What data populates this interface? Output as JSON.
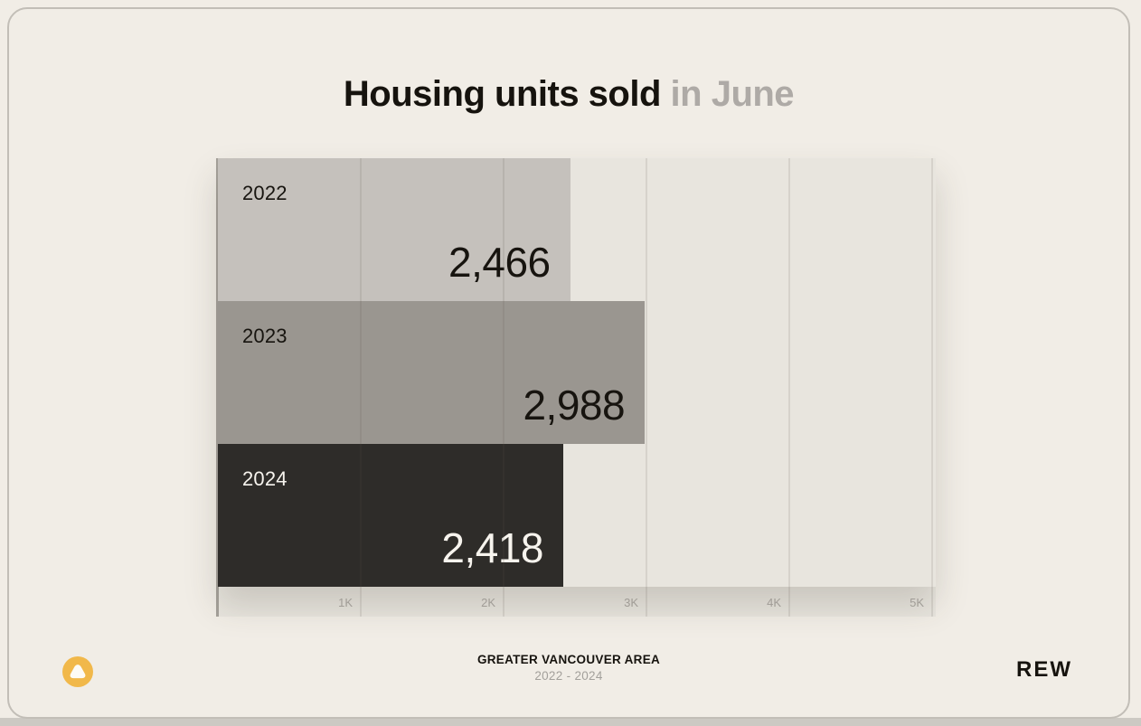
{
  "title": {
    "main": "Housing units sold",
    "accent": "in June"
  },
  "chart_data": {
    "type": "bar",
    "orientation": "horizontal",
    "title": "Housing units sold in June",
    "categories": [
      "2022",
      "2023",
      "2024"
    ],
    "values": [
      2466,
      2988,
      2418
    ],
    "value_labels": [
      "2,466",
      "2,988",
      "2,418"
    ],
    "bar_colors": [
      "#c5c1bc",
      "#9a9690",
      "#2e2c29"
    ],
    "bar_text_colors": [
      "#17140f",
      "#17140f",
      "#f7f4ee"
    ],
    "x_ticks": [
      {
        "label": "1K",
        "value": 1000
      },
      {
        "label": "2K",
        "value": 2000
      },
      {
        "label": "3K",
        "value": 3000
      },
      {
        "label": "4K",
        "value": 4000
      },
      {
        "label": "5K",
        "value": 5000
      }
    ],
    "xlim": [
      0,
      5000
    ],
    "grid": true,
    "legend": false
  },
  "footer": {
    "region": "GREATER VANCOUVER AREA",
    "period": "2022 - 2024",
    "brand": "REW"
  },
  "colors": {
    "page_bg": "#f1ede6",
    "card_border": "#c2beb7",
    "plot_bg": "#e8e5de",
    "axis_line": "#a5a19a",
    "tick_label": "#a09c96",
    "title_main": "#16130e",
    "title_accent": "#aeaaa6",
    "logo_yellow": "#f1b84a",
    "bottom_strip": "#ccc9c3"
  },
  "icons": {
    "logo": "rew-triangle-in-circle"
  }
}
